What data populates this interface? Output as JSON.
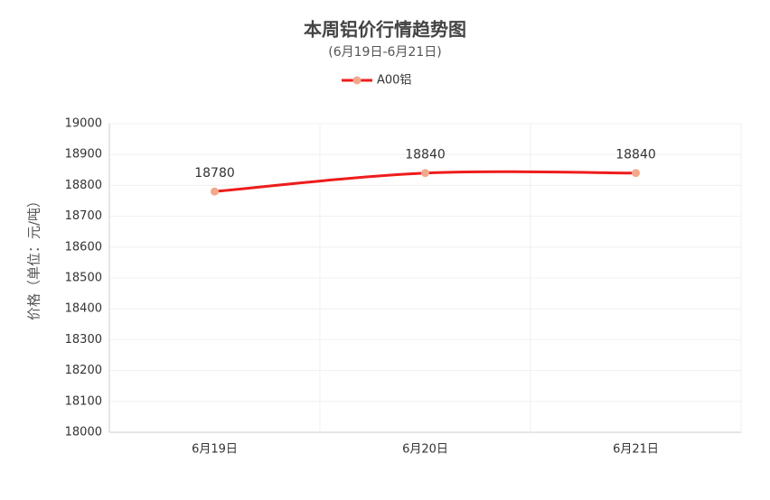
{
  "chart_data": {
    "type": "line",
    "title": "本周铝价行情趋势图",
    "subtitle": "(6月19日-6月21日)",
    "y_label": "价格（单位：元/吨）",
    "categories": [
      "6月19日",
      "6月20日",
      "6月21日"
    ],
    "series": [
      {
        "name": "A00铝",
        "color": "#ee1c1c",
        "marker_color": "#f2a98b",
        "values": [
          18780,
          18840,
          18840
        ]
      }
    ],
    "ylim": [
      18000,
      19000
    ],
    "yticks": [
      18000,
      18100,
      18200,
      18300,
      18400,
      18500,
      18600,
      18700,
      18800,
      18900,
      19000
    ],
    "grid": true,
    "smooth": true,
    "legend": "top"
  }
}
